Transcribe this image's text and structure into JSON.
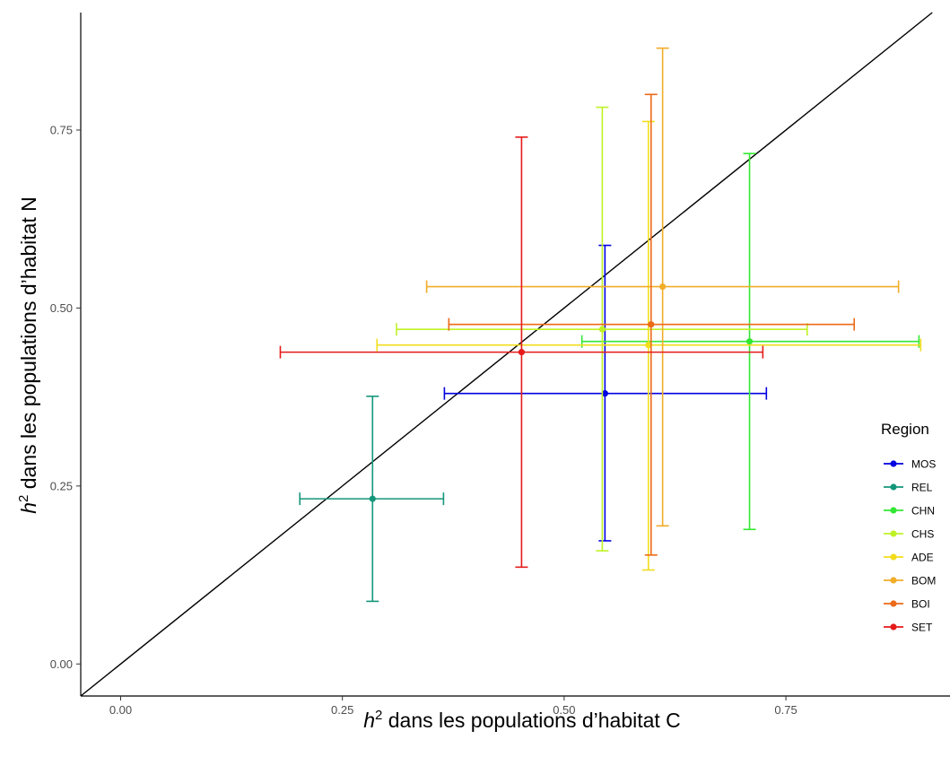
{
  "chart_data": {
    "type": "scatter",
    "title": "",
    "xlabel": {
      "base": "h",
      "sup": "2",
      "rest": " dans les populations d’habitat C"
    },
    "ylabel": {
      "base": "h",
      "sup": "2",
      "rest": " dans les populations d’habitat N"
    },
    "xlim": [
      -0.045,
      0.935
    ],
    "ylim": [
      -0.045,
      0.915
    ],
    "x_ticks": [
      "0.00",
      "0.25",
      "0.50",
      "0.75"
    ],
    "y_ticks": [
      "0.00",
      "0.25",
      "0.50",
      "0.75"
    ],
    "grid": false,
    "reference_line": "y = x",
    "legend": {
      "title": "Region",
      "position": "right"
    },
    "series": [
      {
        "name": "MOS",
        "color": "#0000e0",
        "x": 0.546,
        "y": 0.38,
        "x_err": [
          0.365,
          0.728
        ],
        "y_err": [
          0.173,
          0.588
        ]
      },
      {
        "name": "REL",
        "color": "#14967a",
        "x": 0.284,
        "y": 0.232,
        "x_err": [
          0.202,
          0.364
        ],
        "y_err": [
          0.088,
          0.376
        ]
      },
      {
        "name": "CHN",
        "color": "#33e833",
        "x": 0.709,
        "y": 0.453,
        "x_err": [
          0.52,
          0.9
        ],
        "y_err": [
          0.189,
          0.717
        ]
      },
      {
        "name": "CHS",
        "color": "#bff226",
        "x": 0.543,
        "y": 0.47,
        "x_err": [
          0.311,
          0.774
        ],
        "y_err": [
          0.159,
          0.782
        ]
      },
      {
        "name": "ADE",
        "color": "#f2dd1c",
        "x": 0.595,
        "y": 0.448,
        "x_err": [
          0.289,
          0.902
        ],
        "y_err": [
          0.132,
          0.762
        ]
      },
      {
        "name": "BOM",
        "color": "#f2ad29",
        "x": 0.611,
        "y": 0.53,
        "x_err": [
          0.345,
          0.877
        ],
        "y_err": [
          0.194,
          0.865
        ]
      },
      {
        "name": "BOI",
        "color": "#ec6a18",
        "x": 0.598,
        "y": 0.477,
        "x_err": [
          0.37,
          0.827
        ],
        "y_err": [
          0.153,
          0.8
        ]
      },
      {
        "name": "SET",
        "color": "#e51a1a",
        "x": 0.452,
        "y": 0.438,
        "x_err": [
          0.18,
          0.724
        ],
        "y_err": [
          0.136,
          0.74
        ]
      }
    ]
  }
}
